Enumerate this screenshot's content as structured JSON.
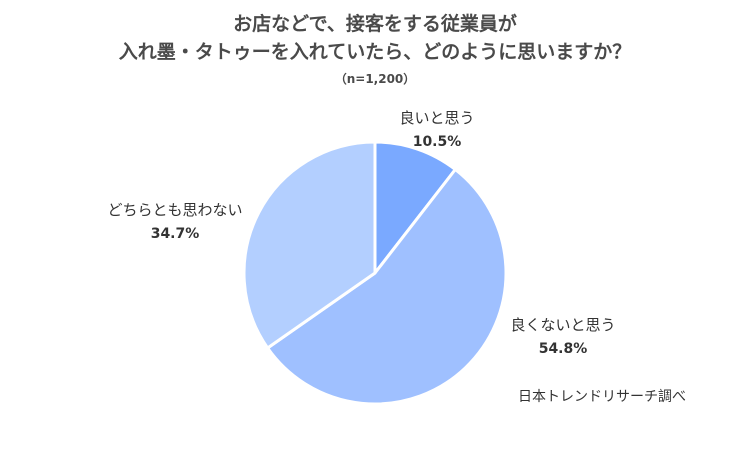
{
  "chart_data": {
    "type": "pie",
    "title_lines": [
      "お店などで、接客をする従業員が",
      "入れ墨・タトゥーを入れていたら、どのように思いますか？"
    ],
    "subtitle": "（n=1,200）",
    "slices": [
      {
        "label": "良いと思う",
        "value": 10.5,
        "value_label": "10.5%",
        "color": "#7aa9ff"
      },
      {
        "label": "良くないと思う",
        "value": 54.8,
        "value_label": "54.8%",
        "color": "#9fc0ff"
      },
      {
        "label": "どちらとも思わない",
        "value": 34.7,
        "value_label": "34.7%",
        "color": "#b3cfff"
      }
    ],
    "start": "12 o'clock",
    "direction": "clockwise",
    "source": "日本トレンドリサーチ調べ"
  }
}
